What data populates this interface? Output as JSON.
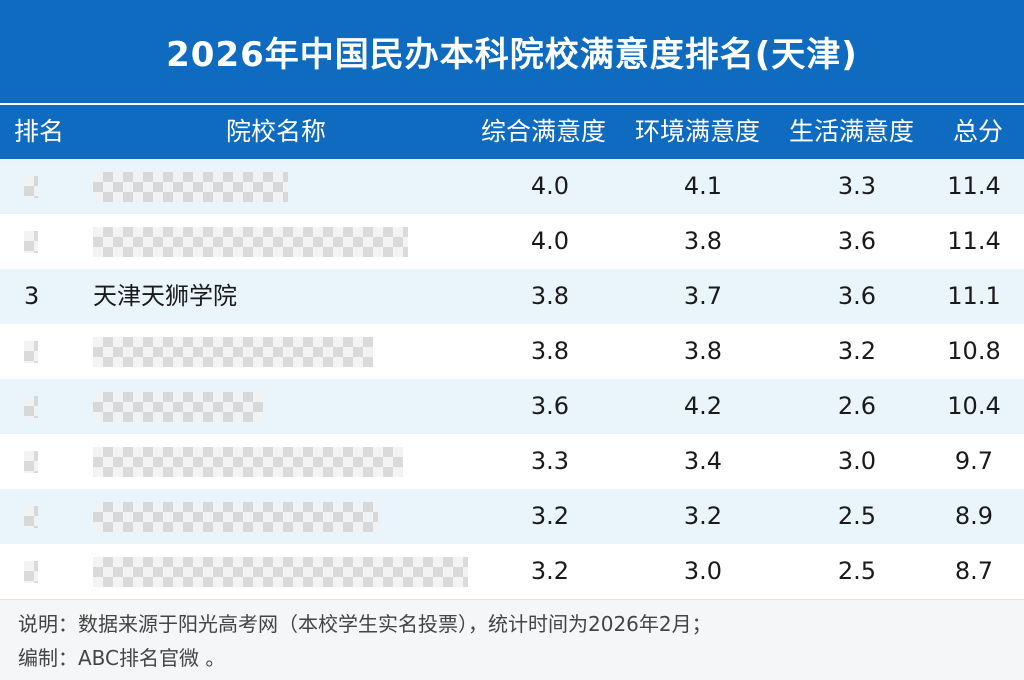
{
  "title": "2026年中国民办本科院校满意度排名(天津)",
  "columns": {
    "rank": "排名",
    "name": "院校名称",
    "overall": "综合满意度",
    "environment": "环境满意度",
    "life": "生活满意度",
    "total": "总分"
  },
  "rows": [
    {
      "rank": "",
      "name": "",
      "overall": "4.0",
      "environment": "4.1",
      "life": "3.3",
      "total": "11.4",
      "masked": true
    },
    {
      "rank": "",
      "name": "",
      "overall": "4.0",
      "environment": "3.8",
      "life": "3.6",
      "total": "11.4",
      "masked": true
    },
    {
      "rank": "3",
      "name": "天津天狮学院",
      "overall": "3.8",
      "environment": "3.7",
      "life": "3.6",
      "total": "11.1",
      "masked": false
    },
    {
      "rank": "",
      "name": "",
      "overall": "3.8",
      "environment": "3.8",
      "life": "3.2",
      "total": "10.8",
      "masked": true
    },
    {
      "rank": "",
      "name": "",
      "overall": "3.6",
      "environment": "4.2",
      "life": "2.6",
      "total": "10.4",
      "masked": true
    },
    {
      "rank": "",
      "name": "",
      "overall": "3.3",
      "environment": "3.4",
      "life": "3.0",
      "total": "9.7",
      "masked": true
    },
    {
      "rank": "",
      "name": "",
      "overall": "3.2",
      "environment": "3.2",
      "life": "2.5",
      "total": "8.9",
      "masked": true
    },
    {
      "rank": "",
      "name": "",
      "overall": "3.2",
      "environment": "3.0",
      "life": "2.5",
      "total": "8.7",
      "masked": true
    }
  ],
  "footer": {
    "note": "说明：数据来源于阳光高考网（本校学生实名投票），统计时间为2026年2月；",
    "editor": "编制：ABC排名官微 。"
  },
  "colors": {
    "header": "#0f6bbf",
    "row_shade": "#eaf5fb",
    "text": "#1a1a1a"
  }
}
